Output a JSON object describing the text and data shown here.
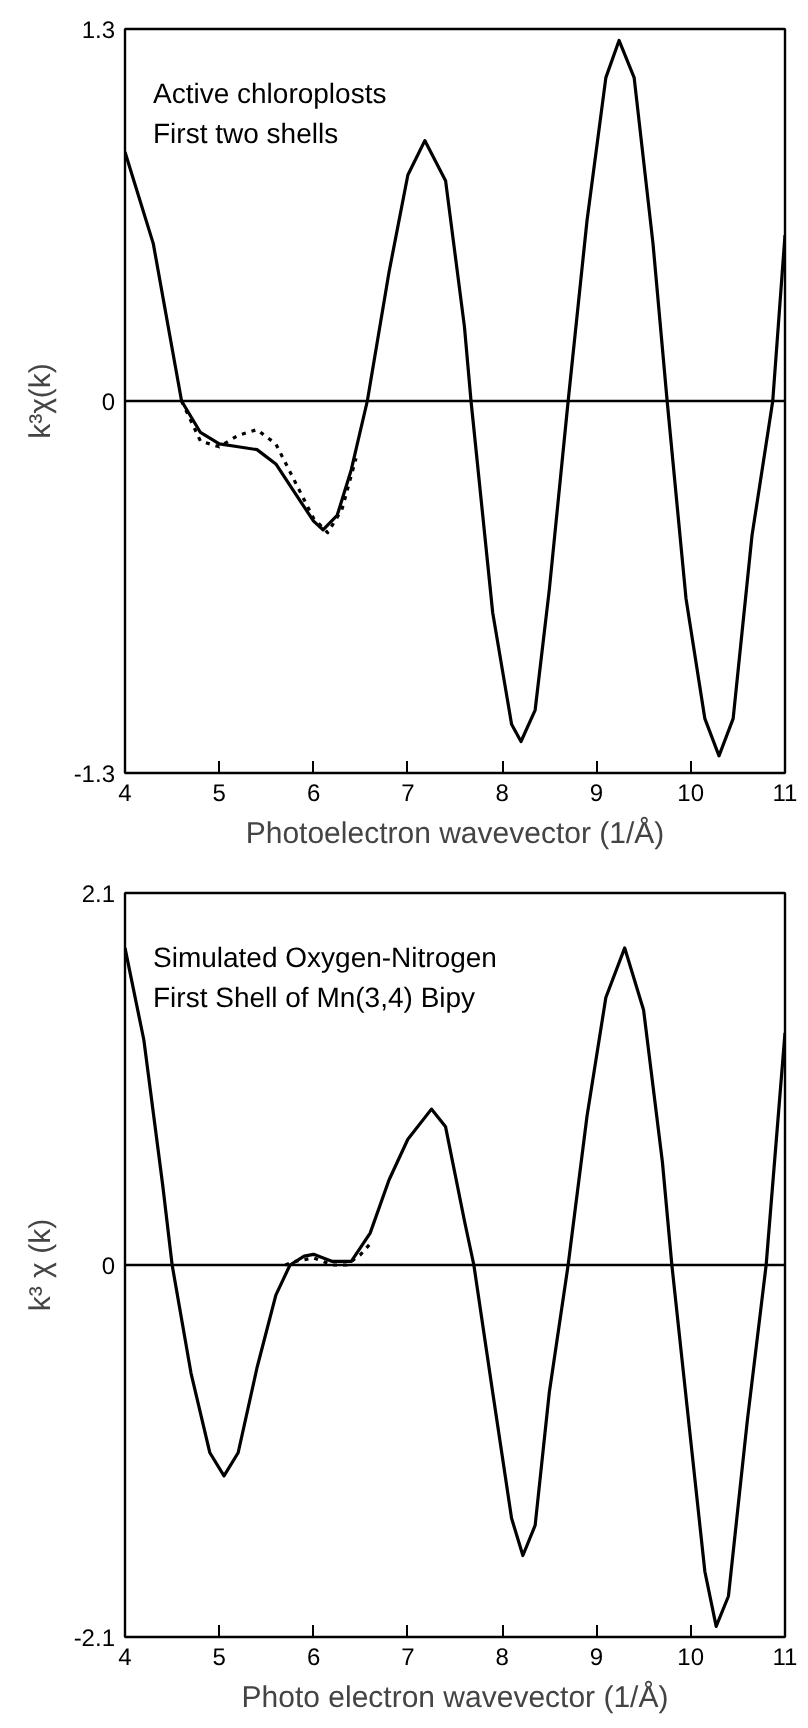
{
  "chart_data": [
    {
      "type": "line",
      "xlabel": "Photoelectron wavevector (1/Å)",
      "ylabel": "k³χ(k)",
      "annotations": [
        "Active chloroplosts",
        "First two shells"
      ],
      "xlim": [
        4,
        11
      ],
      "ylim": [
        -1.3,
        1.3
      ],
      "xticks": [
        4,
        5,
        6,
        7,
        8,
        9,
        10,
        11
      ],
      "yticks": [
        {
          "value": -1.3,
          "label": "-1.3"
        },
        0,
        {
          "value": 1.3,
          "label": "1.3"
        }
      ],
      "ref_lines": [
        {
          "axis": "y",
          "value": 0
        }
      ],
      "series": [
        {
          "color": "#000000",
          "line_style": "solid",
          "x": [
            4,
            4.3,
            4.6,
            4.8,
            5.0,
            5.2,
            5.4,
            5.6,
            5.8,
            6.0,
            6.1,
            6.25,
            6.4,
            6.57,
            6.8,
            7.0,
            7.18,
            7.4,
            7.6,
            7.67,
            7.9,
            8.1,
            8.2,
            8.35,
            8.5,
            8.7,
            8.9,
            9.1,
            9.24,
            9.4,
            9.6,
            9.75,
            9.95,
            10.15,
            10.3,
            10.45,
            10.65,
            10.87,
            11
          ],
          "values": [
            0.87,
            0.55,
            0,
            -0.11,
            -0.15,
            -0.16,
            -0.17,
            -0.22,
            -0.32,
            -0.42,
            -0.45,
            -0.4,
            -0.24,
            0,
            0.45,
            0.79,
            0.91,
            0.77,
            0.26,
            0,
            -0.74,
            -1.13,
            -1.19,
            -1.08,
            -0.66,
            0,
            0.63,
            1.13,
            1.26,
            1.13,
            0.55,
            0,
            -0.69,
            -1.11,
            -1.24,
            -1.11,
            -0.47,
            0,
            0.58
          ]
        },
        {
          "color": "#000000",
          "line_style": "dotted",
          "x": [
            4.6,
            4.8,
            5.0,
            5.2,
            5.4,
            5.6,
            5.8,
            6.0,
            6.15,
            6.3,
            6.45
          ],
          "values": [
            0,
            -0.14,
            -0.16,
            -0.12,
            -0.1,
            -0.15,
            -0.28,
            -0.41,
            -0.46,
            -0.38,
            -0.2
          ]
        }
      ]
    },
    {
      "type": "line",
      "xlabel": "Photo electron wavevector (1/Å)",
      "ylabel": "k³ χ (k)",
      "annotations": [
        "Simulated Oxygen-Nitrogen",
        "First Shell of Mn(3,4) Bipy"
      ],
      "xlim": [
        4,
        11
      ],
      "ylim": [
        -2.1,
        2.1
      ],
      "xticks": [
        4,
        5,
        6,
        7,
        8,
        9,
        10,
        11
      ],
      "yticks": [
        {
          "value": -2.1,
          "label": "-2.1"
        },
        0,
        {
          "value": 2.1,
          "label": "2.1"
        }
      ],
      "ref_lines": [
        {
          "axis": "y",
          "value": 0
        }
      ],
      "series": [
        {
          "color": "#000000",
          "line_style": "solid",
          "x": [
            4.0,
            4.2,
            4.4,
            4.5,
            4.7,
            4.9,
            5.05,
            5.2,
            5.4,
            5.6,
            5.75,
            5.9,
            6.0,
            6.2,
            6.4,
            6.6,
            6.8,
            7.0,
            7.25,
            7.4,
            7.6,
            7.7,
            7.9,
            8.1,
            8.22,
            8.35,
            8.5,
            8.7,
            8.9,
            9.1,
            9.3,
            9.5,
            9.7,
            9.8,
            10.0,
            10.15,
            10.27,
            10.4,
            10.6,
            10.8,
            11
          ],
          "values": [
            1.79,
            1.27,
            0.45,
            0,
            -0.61,
            -1.06,
            -1.19,
            -1.06,
            -0.58,
            -0.17,
            0,
            0.05,
            0.06,
            0.02,
            0.02,
            0.18,
            0.48,
            0.71,
            0.88,
            0.78,
            0.25,
            0,
            -0.72,
            -1.43,
            -1.64,
            -1.47,
            -0.72,
            0,
            0.84,
            1.51,
            1.79,
            1.44,
            0.58,
            0,
            -0.99,
            -1.73,
            -2.04,
            -1.87,
            -0.88,
            0,
            1.31
          ]
        },
        {
          "color": "#000000",
          "line_style": "dotted",
          "x": [
            5.7,
            5.8,
            6.0,
            6.2,
            6.35,
            6.5,
            6.6
          ],
          "values": [
            0,
            0.02,
            0.04,
            0,
            0,
            0.06,
            0.12
          ]
        }
      ]
    }
  ]
}
